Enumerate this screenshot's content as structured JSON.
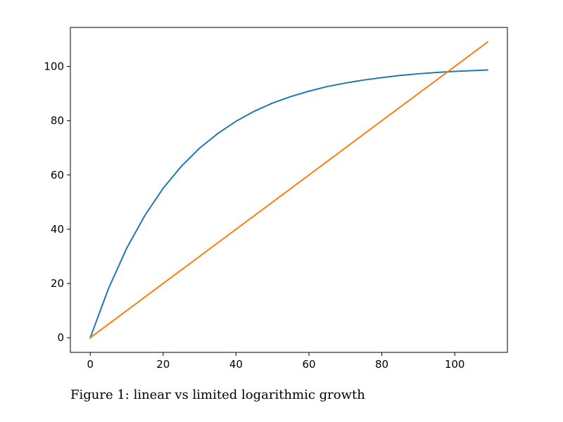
{
  "chart_data": {
    "type": "line",
    "title": "",
    "xlabel": "",
    "ylabel": "",
    "xlim": [
      -5.45,
      114.45
    ],
    "ylim": [
      -5.4,
      114.4
    ],
    "x_ticks": [
      0,
      20,
      40,
      60,
      80,
      100
    ],
    "y_ticks": [
      0,
      20,
      40,
      60,
      80,
      100
    ],
    "x_tick_labels": [
      "0",
      "20",
      "40",
      "60",
      "80",
      "100"
    ],
    "y_tick_labels": [
      "0",
      "20",
      "40",
      "60",
      "80",
      "100"
    ],
    "grid": false,
    "legend": "none",
    "series": [
      {
        "color": "#1f77b4",
        "x": [
          0,
          5,
          10,
          15,
          20,
          25,
          30,
          35,
          40,
          45,
          50,
          55,
          60,
          65,
          70,
          75,
          80,
          85,
          90,
          95,
          100,
          105,
          109
        ],
        "y": [
          0,
          18.1,
          33,
          45.1,
          55.1,
          63.2,
          69.9,
          75.3,
          79.8,
          83.5,
          86.5,
          88.9,
          90.9,
          92.6,
          93.9,
          95,
          95.9,
          96.7,
          97.3,
          97.8,
          98.2,
          98.5,
          98.7
        ]
      },
      {
        "color": "#ff7f0e",
        "x": [
          0,
          109
        ],
        "y": [
          0,
          109
        ]
      }
    ]
  },
  "caption": "Figure 1: linear vs limited logarithmic growth"
}
